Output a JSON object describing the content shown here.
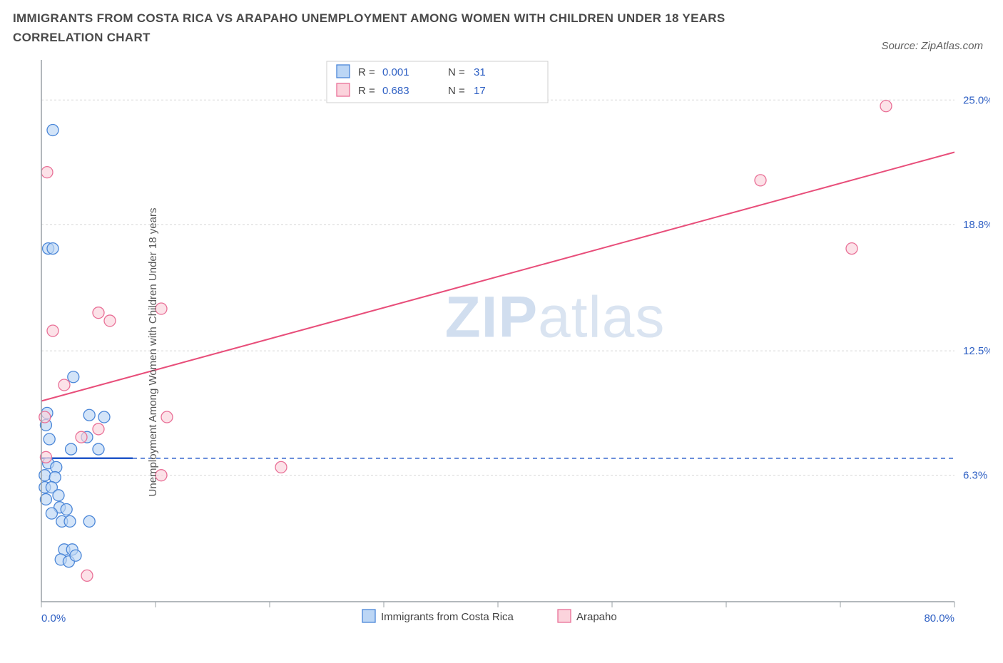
{
  "title": "IMMIGRANTS FROM COSTA RICA VS ARAPAHO UNEMPLOYMENT AMONG WOMEN WITH CHILDREN UNDER 18 YEARS CORRELATION CHART",
  "source": "Source: ZipAtlas.com",
  "ylabel": "Unemployment Among Women with Children Under 18 years",
  "watermark_a": "ZIP",
  "watermark_b": "atlas",
  "chart": {
    "type": "scatter",
    "xlim": [
      0,
      80
    ],
    "ylim": [
      0,
      27
    ],
    "x_tick_positions": [
      0,
      10,
      20,
      30,
      40,
      50,
      60,
      70,
      80
    ],
    "x_tick_labels_shown": {
      "0": "0.0%",
      "80": "80.0%"
    },
    "y_ticks": [
      {
        "v": 6.3,
        "label": "6.3%"
      },
      {
        "v": 12.5,
        "label": "12.5%"
      },
      {
        "v": 18.8,
        "label": "18.8%"
      },
      {
        "v": 25.0,
        "label": "25.0%"
      }
    ],
    "grid_color": "#d8d8d8",
    "axis_color": "#9aa0a6",
    "background_color": "#ffffff",
    "marker_radius": 8,
    "marker_stroke_width": 1.3,
    "series": [
      {
        "name": "Immigrants from Costa Rica",
        "fill": "#bcd6f5",
        "stroke": "#4a86d8",
        "R": "0.001",
        "N": "31",
        "points": [
          [
            1.0,
            23.5
          ],
          [
            0.6,
            17.6
          ],
          [
            1.0,
            17.6
          ],
          [
            2.8,
            11.2
          ],
          [
            0.5,
            9.4
          ],
          [
            4.2,
            9.3
          ],
          [
            5.5,
            9.2
          ],
          [
            4.0,
            8.2
          ],
          [
            0.4,
            8.8
          ],
          [
            0.7,
            8.1
          ],
          [
            5.0,
            7.6
          ],
          [
            2.6,
            7.6
          ],
          [
            0.6,
            6.9
          ],
          [
            1.3,
            6.7
          ],
          [
            0.3,
            6.3
          ],
          [
            1.2,
            6.2
          ],
          [
            0.3,
            5.7
          ],
          [
            0.9,
            5.7
          ],
          [
            1.5,
            5.3
          ],
          [
            0.4,
            5.1
          ],
          [
            1.6,
            4.7
          ],
          [
            2.2,
            4.6
          ],
          [
            0.9,
            4.4
          ],
          [
            1.8,
            4.0
          ],
          [
            2.5,
            4.0
          ],
          [
            4.2,
            4.0
          ],
          [
            2.0,
            2.6
          ],
          [
            2.7,
            2.6
          ],
          [
            1.7,
            2.1
          ],
          [
            2.4,
            2.0
          ],
          [
            3.0,
            2.3
          ]
        ],
        "trend": {
          "y_at_x0": 7.15,
          "y_at_x80": 7.15,
          "solid_until_x": 8
        }
      },
      {
        "name": "Arapaho",
        "fill": "#fbd3dc",
        "stroke": "#e97097",
        "R": "0.683",
        "N": "17",
        "points": [
          [
            0.5,
            21.4
          ],
          [
            74.0,
            24.7
          ],
          [
            63.0,
            21.0
          ],
          [
            71.0,
            17.6
          ],
          [
            5.0,
            14.4
          ],
          [
            6.0,
            14.0
          ],
          [
            10.5,
            14.6
          ],
          [
            1.0,
            13.5
          ],
          [
            2.0,
            10.8
          ],
          [
            5.0,
            8.6
          ],
          [
            11.0,
            9.2
          ],
          [
            0.3,
            9.2
          ],
          [
            3.5,
            8.2
          ],
          [
            21.0,
            6.7
          ],
          [
            10.5,
            6.3
          ],
          [
            0.4,
            7.2
          ],
          [
            4.0,
            1.3
          ]
        ],
        "trend": {
          "y_at_x0": 10.0,
          "y_at_x80": 22.4
        }
      }
    ]
  },
  "top_legend": {
    "r_label": "R =",
    "n_label": "N ="
  },
  "bottom_legend": {
    "items": [
      "Immigrants from Costa Rica",
      "Arapaho"
    ]
  }
}
